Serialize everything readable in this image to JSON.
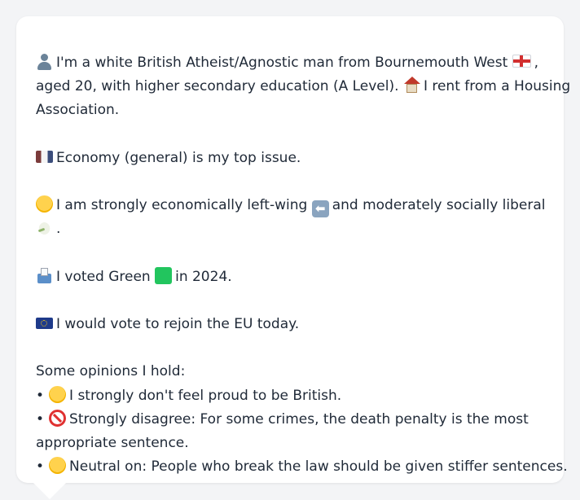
{
  "profile": {
    "intro_line1_a": "I'm a white British Atheist/Agnostic man from Bournemouth West",
    "intro_line1_b": ",",
    "intro_line2_a": "aged 20, with higher secondary education (A Level).",
    "intro_line2_b": "I rent from a Housing",
    "intro_line3": "Association.",
    "top_issue": "Economy (general) is my top issue.",
    "ideology_line1_a": "I am strongly economically left-wing",
    "ideology_line1_b": "and moderately socially liberal",
    "ideology_line2": ".",
    "vote_a": "I voted Green",
    "vote_b": "in 2024.",
    "eu": "I would vote to rejoin the EU today.",
    "opinions_heading": "Some opinions I hold:",
    "bullet": "•",
    "opinion1": "I strongly don't feel proud to be British.",
    "opinion2_line1": "Strongly disagree: For some crimes, the death penalty is the most",
    "opinion2_line2": "appropriate sentence.",
    "opinion3": "Neutral on: People who break the law should be given stiffer sentences.",
    "arrow_glyph": "⬅"
  },
  "icons": {
    "person": "bust-silhouette-icon",
    "england_flag": "england-flag-icon",
    "house": "house-icon",
    "money": "banknote-icon",
    "thinking": "thinking-face-icon",
    "left_arrow": "left-arrow-icon",
    "dove": "dove-icon",
    "ballot": "ballot-box-icon",
    "green_square": "green-square-icon",
    "eu_flag": "eu-flag-icon",
    "sad_face": "disappointed-face-icon",
    "no_entry": "prohibited-icon",
    "neutral_face": "neutral-face-icon"
  },
  "colors": {
    "background": "#f3f4f6",
    "bubble": "#ffffff",
    "text": "#1f2937"
  }
}
